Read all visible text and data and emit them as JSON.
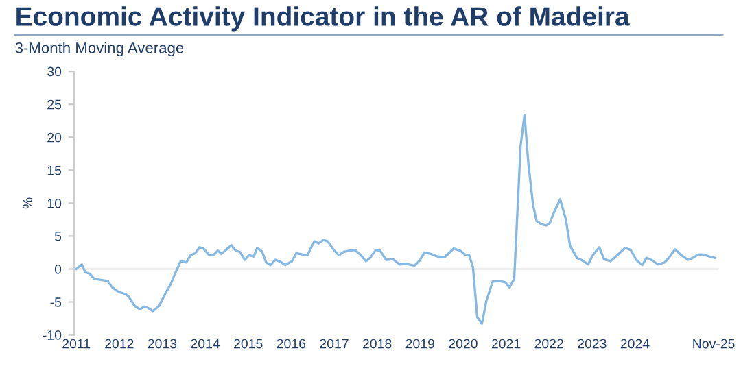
{
  "chart_data": {
    "type": "line",
    "title": "Economic Activity Indicator in the AR of Madeira",
    "subtitle": "3-Month Moving Average",
    "ylabel": "%",
    "x": [
      2011.0,
      2011.13,
      2011.21,
      2011.31,
      2011.42,
      2011.52,
      2011.63,
      2011.73,
      2011.84,
      2011.99,
      2012.15,
      2012.22,
      2012.36,
      2012.48,
      2012.59,
      2012.67,
      2012.78,
      2012.93,
      2013.09,
      2013.19,
      2013.3,
      2013.43,
      2013.56,
      2013.66,
      2013.77,
      2013.87,
      2013.96,
      2014.08,
      2014.19,
      2014.29,
      2014.38,
      2014.48,
      2014.61,
      2014.71,
      2014.81,
      2014.92,
      2015.02,
      2015.13,
      2015.21,
      2015.32,
      2015.42,
      2015.52,
      2015.63,
      2015.75,
      2015.86,
      2016.02,
      2016.12,
      2016.28,
      2016.38,
      2016.54,
      2016.64,
      2016.75,
      2016.85,
      2016.99,
      2017.11,
      2017.22,
      2017.37,
      2017.48,
      2017.61,
      2017.74,
      2017.84,
      2017.97,
      2018.07,
      2018.21,
      2018.37,
      2018.52,
      2018.68,
      2018.87,
      2018.99,
      2019.1,
      2019.25,
      2019.41,
      2019.57,
      2019.78,
      2019.93,
      2020.04,
      2020.14,
      2020.23,
      2020.33,
      2020.44,
      2020.54,
      2020.69,
      2020.82,
      2020.98,
      2021.08,
      2021.19,
      2021.34,
      2021.43,
      2021.52,
      2021.63,
      2021.71,
      2021.82,
      2021.94,
      2022.02,
      2022.11,
      2022.26,
      2022.39,
      2022.49,
      2022.65,
      2022.78,
      2022.91,
      2023.02,
      2023.17,
      2023.28,
      2023.43,
      2023.59,
      2023.77,
      2023.9,
      2024.03,
      2024.17,
      2024.27,
      2024.41,
      2024.53,
      2024.69,
      2024.79,
      2024.93,
      2025.08,
      2025.24,
      2025.35,
      2025.47,
      2025.6,
      2025.73,
      2025.86
    ],
    "series": [
      {
        "color": "#85b8e2",
        "values": [
          0,
          0.7,
          -0.5,
          -0.7,
          -1.5,
          -1.6,
          -1.7,
          -1.8,
          -2.8,
          -3.5,
          -3.8,
          -4.2,
          -5.6,
          -6.1,
          -5.7,
          -5.9,
          -6.4,
          -5.6,
          -3.5,
          -2.4,
          -0.7,
          1.2,
          1.0,
          2.1,
          2.4,
          3.3,
          3.1,
          2.2,
          2.1,
          2.8,
          2.3,
          2.9,
          3.6,
          2.8,
          2.6,
          1.4,
          2.1,
          1.9,
          3.2,
          2.7,
          1.0,
          0.6,
          1.4,
          1.1,
          0.6,
          1.2,
          2.4,
          2.2,
          2.1,
          4.2,
          3.9,
          4.4,
          4.2,
          2.9,
          2.1,
          2.6,
          2.8,
          2.9,
          2.2,
          1.2,
          1.7,
          2.9,
          2.8,
          1.4,
          1.5,
          0.7,
          0.8,
          0.5,
          1.3,
          2.5,
          2.3,
          1.9,
          1.8,
          3.1,
          2.8,
          2.2,
          2.1,
          0.3,
          -7.3,
          -8.3,
          -4.9,
          -1.9,
          -1.8,
          -2.0,
          -2.8,
          -1.5,
          18.8,
          23.4,
          16.0,
          9.7,
          7.3,
          6.8,
          6.6,
          7.0,
          8.5,
          10.6,
          7.6,
          3.5,
          1.7,
          1.3,
          0.7,
          2.1,
          3.3,
          1.5,
          1.2,
          2.1,
          3.2,
          2.9,
          1.4,
          0.6,
          1.7,
          1.3,
          0.7,
          1.0,
          1.7,
          3.0,
          2.1,
          1.4,
          1.7,
          2.2,
          2.2,
          1.9,
          1.7
        ]
      }
    ],
    "xlim": [
      2010.95,
      2025.95
    ],
    "xticks": [
      {
        "value": 2011,
        "label": "2011"
      },
      {
        "value": 2012,
        "label": "2012"
      },
      {
        "value": 2013,
        "label": "2013"
      },
      {
        "value": 2014,
        "label": "2014"
      },
      {
        "value": 2015,
        "label": "2015"
      },
      {
        "value": 2016,
        "label": "2016"
      },
      {
        "value": 2017,
        "label": "2017"
      },
      {
        "value": 2018,
        "label": "2018"
      },
      {
        "value": 2019,
        "label": "2019"
      },
      {
        "value": 2020,
        "label": "2020"
      },
      {
        "value": 2021,
        "label": "2021"
      },
      {
        "value": 2022,
        "label": "2022"
      },
      {
        "value": 2023,
        "label": "2023"
      },
      {
        "value": 2024,
        "label": "2024"
      },
      {
        "value": 2025.83,
        "label": "Nov-25"
      }
    ],
    "ylim": [
      -10,
      30
    ],
    "yticks": [
      -10,
      -5,
      0,
      5,
      10,
      15,
      20,
      25,
      30
    ],
    "ref_lines": [
      {
        "axis": "y",
        "value": 0,
        "color": "#dcdcdc"
      }
    ],
    "grid": false,
    "legend": false,
    "marker": "none",
    "line_style": "solid"
  }
}
